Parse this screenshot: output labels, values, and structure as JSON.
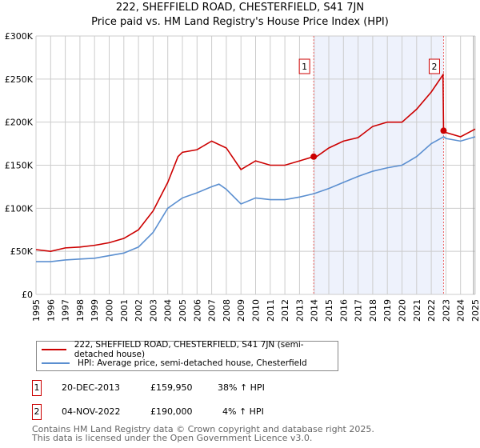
{
  "title": "222, SHEFFIELD ROAD, CHESTERFIELD, S41 7JN",
  "subtitle": "Price paid vs. HM Land Registry's House Price Index (HPI)",
  "chart_data": {
    "type": "line",
    "title": "222, SHEFFIELD ROAD, CHESTERFIELD, S41 7JN — Price paid vs. HM Land Registry's House Price Index (HPI)",
    "xlim": [
      1995,
      2025
    ],
    "ylim": [
      0,
      300000
    ],
    "x_ticks": [
      "1995",
      "1996",
      "1997",
      "1998",
      "1999",
      "2000",
      "2001",
      "2002",
      "2003",
      "2004",
      "2005",
      "2006",
      "2007",
      "2008",
      "2009",
      "2010",
      "2011",
      "2012",
      "2013",
      "2014",
      "2015",
      "2016",
      "2017",
      "2018",
      "2019",
      "2020",
      "2021",
      "2022",
      "2023",
      "2024",
      "2025"
    ],
    "y_ticks": [
      {
        "v": 0,
        "label": "£0"
      },
      {
        "v": 50000,
        "label": "£50K"
      },
      {
        "v": 100000,
        "label": "£100K"
      },
      {
        "v": 150000,
        "label": "£150K"
      },
      {
        "v": 200000,
        "label": "£200K"
      },
      {
        "v": 250000,
        "label": "£250K"
      },
      {
        "v": 300000,
        "label": "£300K"
      }
    ],
    "grid": true,
    "colors": {
      "property": "#cc0000",
      "hpi": "#5b8fd0",
      "shade": "#eef2fc"
    },
    "series": [
      {
        "name": "222, SHEFFIELD ROAD, CHESTERFIELD, S41 7JN (semi-detached house)",
        "points": [
          [
            1995,
            52000
          ],
          [
            1996,
            50000
          ],
          [
            1997,
            54000
          ],
          [
            1998,
            55000
          ],
          [
            1999,
            57000
          ],
          [
            2000,
            60000
          ],
          [
            2001,
            65000
          ],
          [
            2002,
            75000
          ],
          [
            2003,
            97000
          ],
          [
            2004,
            130000
          ],
          [
            2004.7,
            160000
          ],
          [
            2005,
            165000
          ],
          [
            2006,
            168000
          ],
          [
            2007,
            178000
          ],
          [
            2008,
            170000
          ],
          [
            2009,
            145000
          ],
          [
            2010,
            155000
          ],
          [
            2011,
            150000
          ],
          [
            2012,
            150000
          ],
          [
            2013,
            155000
          ],
          [
            2013.97,
            159950
          ],
          [
            2014,
            158000
          ],
          [
            2015,
            170000
          ],
          [
            2016,
            178000
          ],
          [
            2017,
            182000
          ],
          [
            2018,
            195000
          ],
          [
            2019,
            200000
          ],
          [
            2020,
            200000
          ],
          [
            2021,
            215000
          ],
          [
            2022,
            235000
          ],
          [
            2022.8,
            255000
          ],
          [
            2022.84,
            190000
          ],
          [
            2023,
            188000
          ],
          [
            2024,
            183000
          ],
          [
            2025,
            192000
          ]
        ]
      },
      {
        "name": "HPI: Average price, semi-detached house, Chesterfield",
        "points": [
          [
            1995,
            38000
          ],
          [
            1996,
            38000
          ],
          [
            1997,
            40000
          ],
          [
            1998,
            41000
          ],
          [
            1999,
            42000
          ],
          [
            2000,
            45000
          ],
          [
            2001,
            48000
          ],
          [
            2002,
            55000
          ],
          [
            2003,
            72000
          ],
          [
            2004,
            100000
          ],
          [
            2005,
            112000
          ],
          [
            2006,
            118000
          ],
          [
            2007,
            125000
          ],
          [
            2007.5,
            128000
          ],
          [
            2008,
            122000
          ],
          [
            2009,
            105000
          ],
          [
            2010,
            112000
          ],
          [
            2011,
            110000
          ],
          [
            2012,
            110000
          ],
          [
            2013,
            113000
          ],
          [
            2014,
            117000
          ],
          [
            2015,
            123000
          ],
          [
            2016,
            130000
          ],
          [
            2017,
            137000
          ],
          [
            2018,
            143000
          ],
          [
            2019,
            147000
          ],
          [
            2020,
            150000
          ],
          [
            2021,
            160000
          ],
          [
            2022,
            175000
          ],
          [
            2022.85,
            183000
          ],
          [
            2023,
            181000
          ],
          [
            2024,
            178000
          ],
          [
            2025,
            183000
          ]
        ]
      }
    ],
    "sales": [
      {
        "label": "1",
        "x": 2013.97,
        "y": 159950
      },
      {
        "label": "2",
        "x": 2022.84,
        "y": 190000
      }
    ]
  },
  "legend": {
    "property": "222, SHEFFIELD ROAD, CHESTERFIELD, S41 7JN (semi-detached house)",
    "hpi": "HPI: Average price, semi-detached house, Chesterfield"
  },
  "transactions": [
    {
      "num": "1",
      "date": "20-DEC-2013",
      "price": "£159,950",
      "hpi": "38% ↑ HPI"
    },
    {
      "num": "2",
      "date": "04-NOV-2022",
      "price": "£190,000",
      "hpi": "4% ↑ HPI"
    }
  ],
  "footer": [
    "Contains HM Land Registry data © Crown copyright and database right 2025.",
    "This data is licensed under the Open Government Licence v3.0."
  ]
}
